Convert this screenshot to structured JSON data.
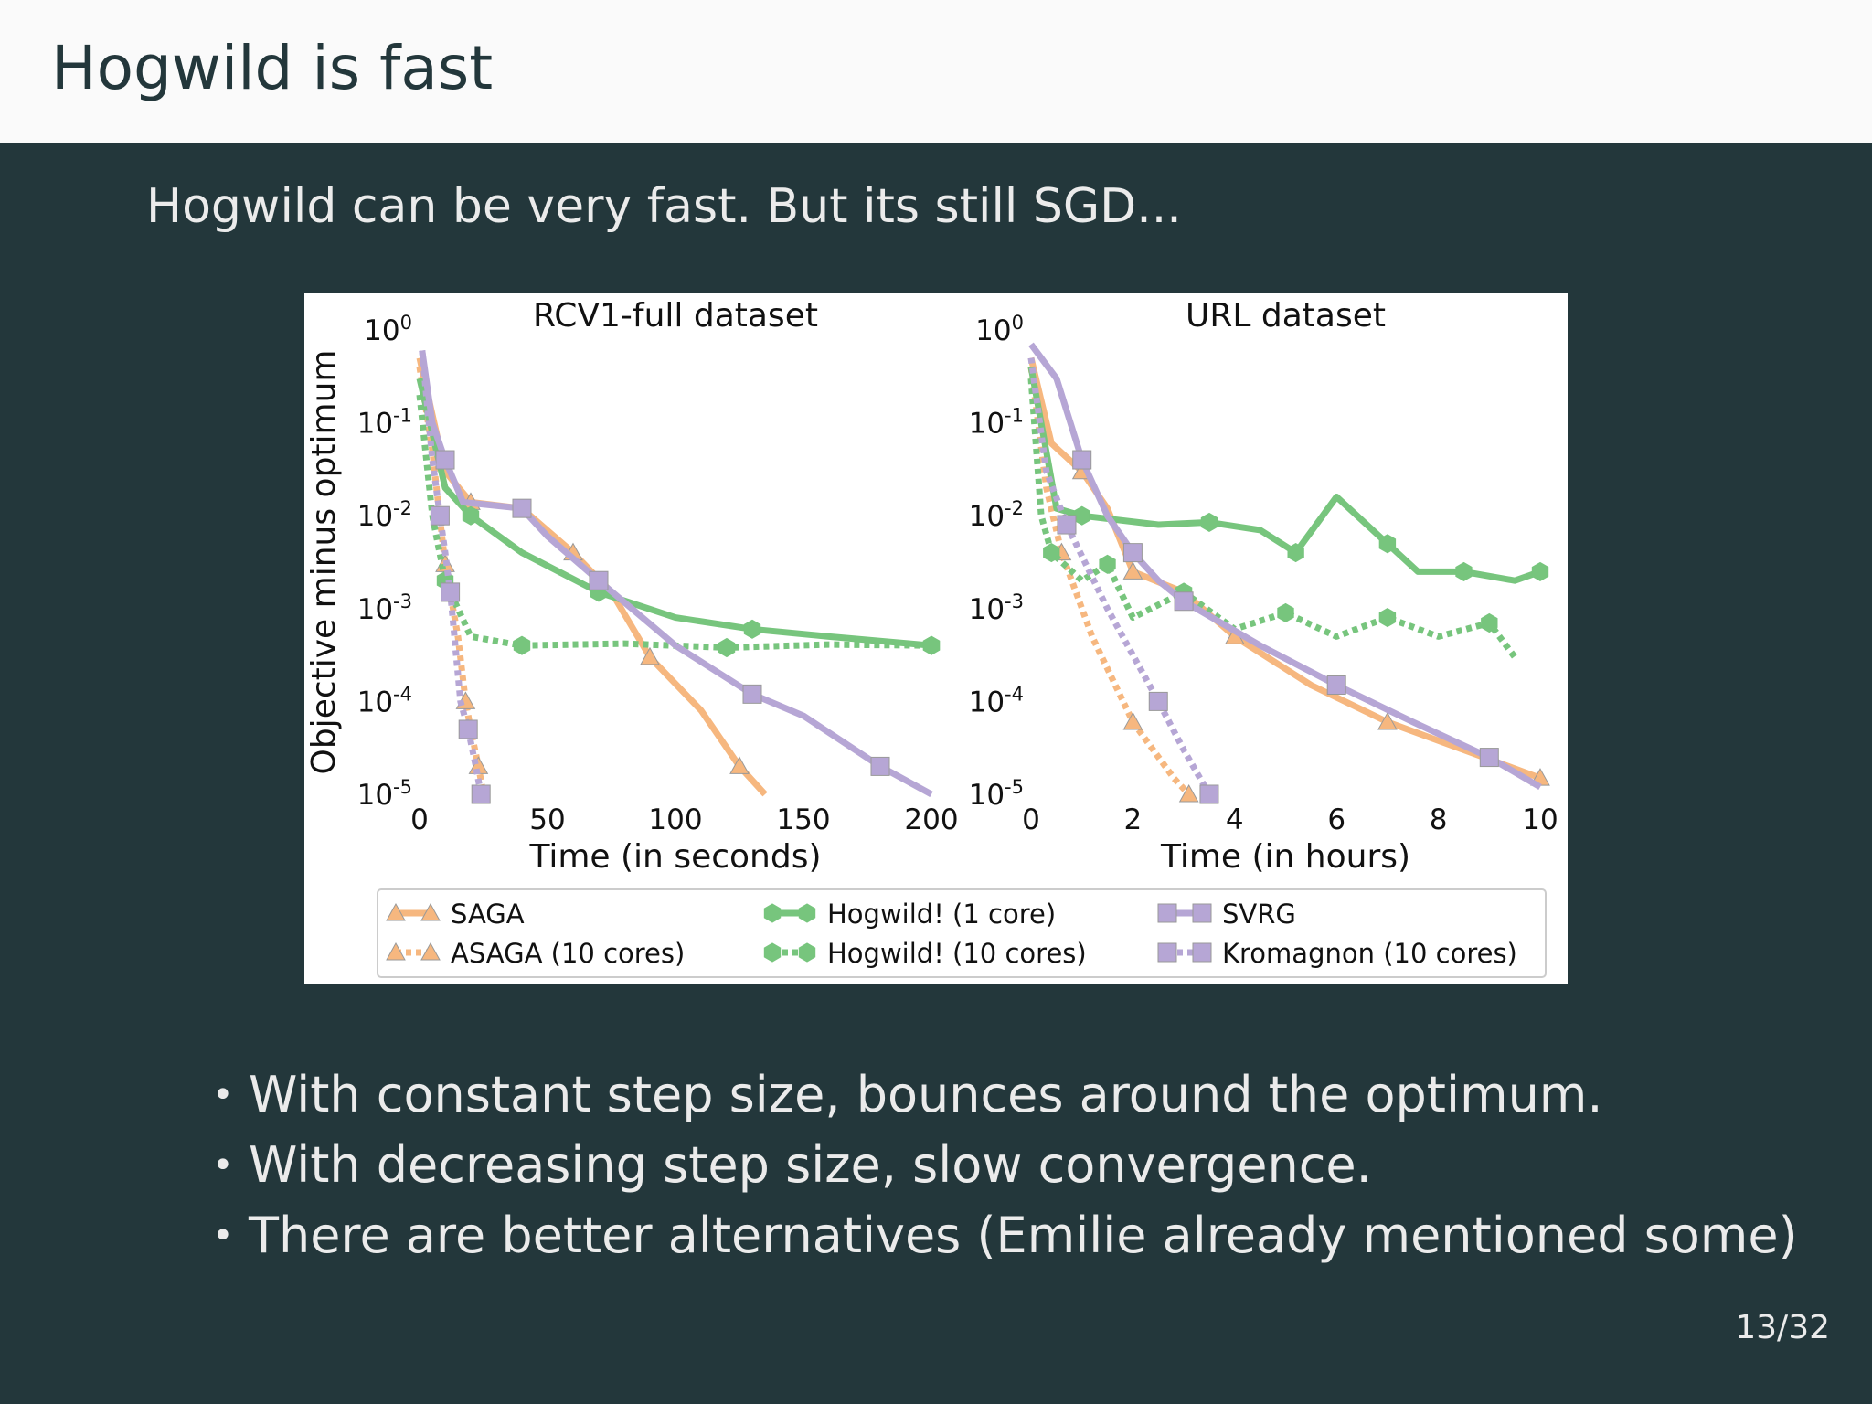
{
  "slide": {
    "title": "Hogwild is fast",
    "subtitle": "Hogwild can be very fast. But its still SGD...",
    "bullets": [
      "With constant step size, bounces around the optimum.",
      "With decreasing step size, slow convergence.",
      "There are better alternatives (Emilie already mentioned some)"
    ],
    "page_number": "13/32"
  },
  "colors": {
    "background": "#23373b",
    "header": "#fafafa",
    "saga": "#f6b77f",
    "hogwild": "#77c57d",
    "svrg": "#b6a6d5"
  },
  "chart_data": [
    {
      "type": "line",
      "title": "RCV1-full dataset",
      "xlabel": "Time (in seconds)",
      "ylabel": "Objective minus optimum",
      "xlim": [
        0,
        200
      ],
      "ylim": [
        1e-05,
        1
      ],
      "y_scale": "log",
      "xticks": [
        "0",
        "50",
        "100",
        "150",
        "200"
      ],
      "yticks": [
        "10^0",
        "10^-1",
        "10^-2",
        "10^-3",
        "10^-4",
        "10^-5"
      ],
      "series": [
        {
          "name": "SAGA",
          "style": "solid",
          "marker": "triangle",
          "color": "#f6b77f",
          "x": [
            0,
            10,
            20,
            40,
            60,
            75,
            90,
            110,
            125,
            135
          ],
          "y": [
            0.5,
            0.03,
            0.014,
            0.012,
            0.004,
            0.0015,
            0.0003,
            8e-05,
            2e-05,
            1e-05
          ]
        },
        {
          "name": "ASAGA (10 cores)",
          "style": "dotted",
          "marker": "triangle",
          "color": "#f6b77f",
          "x": [
            0,
            5,
            10,
            15,
            18,
            20,
            23,
            25
          ],
          "y": [
            0.4,
            0.05,
            0.003,
            0.0005,
            0.0001,
            5e-05,
            2e-05,
            1e-05
          ]
        },
        {
          "name": "Hogwild! (1 core)",
          "style": "solid",
          "marker": "hexagon",
          "color": "#77c57d",
          "x": [
            0,
            10,
            20,
            40,
            70,
            100,
            130,
            160,
            200
          ],
          "y": [
            0.3,
            0.02,
            0.01,
            0.004,
            0.0015,
            0.0008,
            0.0006,
            0.0005,
            0.0004
          ]
        },
        {
          "name": "Hogwild! (10 cores)",
          "style": "dotted",
          "marker": "hexagon",
          "color": "#77c57d",
          "x": [
            0,
            5,
            10,
            20,
            40,
            80,
            120,
            160,
            200
          ],
          "y": [
            0.2,
            0.01,
            0.002,
            0.0005,
            0.0004,
            0.00042,
            0.00038,
            0.00041,
            0.0004
          ]
        },
        {
          "name": "SVRG",
          "style": "solid",
          "marker": "square",
          "color": "#b6a6d5",
          "x": [
            1,
            5,
            10,
            17,
            40,
            50,
            70,
            100,
            130,
            150,
            180,
            200
          ],
          "y": [
            0.6,
            0.1,
            0.04,
            0.014,
            0.012,
            0.006,
            0.002,
            0.0004,
            0.00012,
            7e-05,
            2e-05,
            1e-05
          ]
        },
        {
          "name": "Kromagnon (10 cores)",
          "style": "dotted",
          "marker": "square",
          "color": "#b6a6d5",
          "x": [
            1,
            5,
            8,
            10,
            12,
            16,
            19,
            22,
            24
          ],
          "y": [
            0.6,
            0.04,
            0.01,
            0.004,
            0.0015,
            0.0001,
            5e-05,
            2e-05,
            1e-05
          ]
        }
      ]
    },
    {
      "type": "line",
      "title": "URL dataset",
      "xlabel": "Time (in hours)",
      "ylabel": "",
      "xlim": [
        0,
        10
      ],
      "ylim": [
        1e-05,
        1
      ],
      "y_scale": "log",
      "xticks": [
        "0",
        "2",
        "4",
        "6",
        "8",
        "10"
      ],
      "yticks": [
        "10^0",
        "10^-1",
        "10^-2",
        "10^-3",
        "10^-4",
        "10^-5"
      ],
      "series": [
        {
          "name": "SAGA",
          "style": "solid",
          "marker": "triangle",
          "color": "#f6b77f",
          "x": [
            0,
            0.4,
            1,
            1.5,
            2,
            3,
            4,
            5.5,
            7,
            8.5,
            10
          ],
          "y": [
            0.5,
            0.06,
            0.03,
            0.012,
            0.0025,
            0.0015,
            0.0005,
            0.00015,
            6e-05,
            3e-05,
            1.5e-05
          ]
        },
        {
          "name": "ASAGA (10 cores)",
          "style": "dotted",
          "marker": "triangle",
          "color": "#f6b77f",
          "x": [
            0,
            0.3,
            0.6,
            1.2,
            2.0,
            2.8,
            3.1
          ],
          "y": [
            0.4,
            0.02,
            0.004,
            0.0005,
            6e-05,
            1.5e-05,
            1e-05
          ]
        },
        {
          "name": "Hogwild! (1 core)",
          "style": "solid",
          "marker": "hexagon",
          "color": "#77c57d",
          "x": [
            0,
            0.5,
            1.0,
            2.5,
            3.5,
            4.5,
            5.2,
            6.0,
            7.0,
            7.6,
            8.5,
            9.5,
            10
          ],
          "y": [
            0.4,
            0.012,
            0.01,
            0.008,
            0.0085,
            0.007,
            0.004,
            0.016,
            0.005,
            0.0025,
            0.0025,
            0.002,
            0.0025
          ]
        },
        {
          "name": "Hogwild! (10 cores)",
          "style": "dotted",
          "marker": "hexagon",
          "color": "#77c57d",
          "x": [
            0,
            0.2,
            0.4,
            1.0,
            1.5,
            2.0,
            3.0,
            4.0,
            5.0,
            6.0,
            7.0,
            8.0,
            9.0,
            9.5
          ],
          "y": [
            0.3,
            0.01,
            0.004,
            0.002,
            0.003,
            0.0008,
            0.0015,
            0.0006,
            0.0009,
            0.0005,
            0.0008,
            0.0005,
            0.0007,
            0.0003
          ]
        },
        {
          "name": "SVRG",
          "style": "solid",
          "marker": "square",
          "color": "#b6a6d5",
          "x": [
            0,
            0.5,
            1.0,
            1.5,
            2.0,
            2.5,
            3.0,
            4.5,
            6.0,
            7.5,
            9.0,
            10
          ],
          "y": [
            0.7,
            0.3,
            0.04,
            0.01,
            0.004,
            0.002,
            0.0012,
            0.0004,
            0.00015,
            6e-05,
            2.5e-05,
            1.2e-05
          ]
        },
        {
          "name": "Kromagnon (10 cores)",
          "style": "dotted",
          "marker": "square",
          "color": "#b6a6d5",
          "x": [
            0,
            0.3,
            0.7,
            1.5,
            2.5,
            3.0,
            3.5
          ],
          "y": [
            0.5,
            0.03,
            0.008,
            0.001,
            0.0001,
            3e-05,
            1e-05
          ]
        }
      ]
    }
  ],
  "legend": {
    "placement": "bottom",
    "entries": [
      "SAGA",
      "ASAGA (10 cores)",
      "Hogwild! (1 core)",
      "Hogwild! (10 cores)",
      "SVRG",
      "Kromagnon (10 cores)"
    ]
  }
}
